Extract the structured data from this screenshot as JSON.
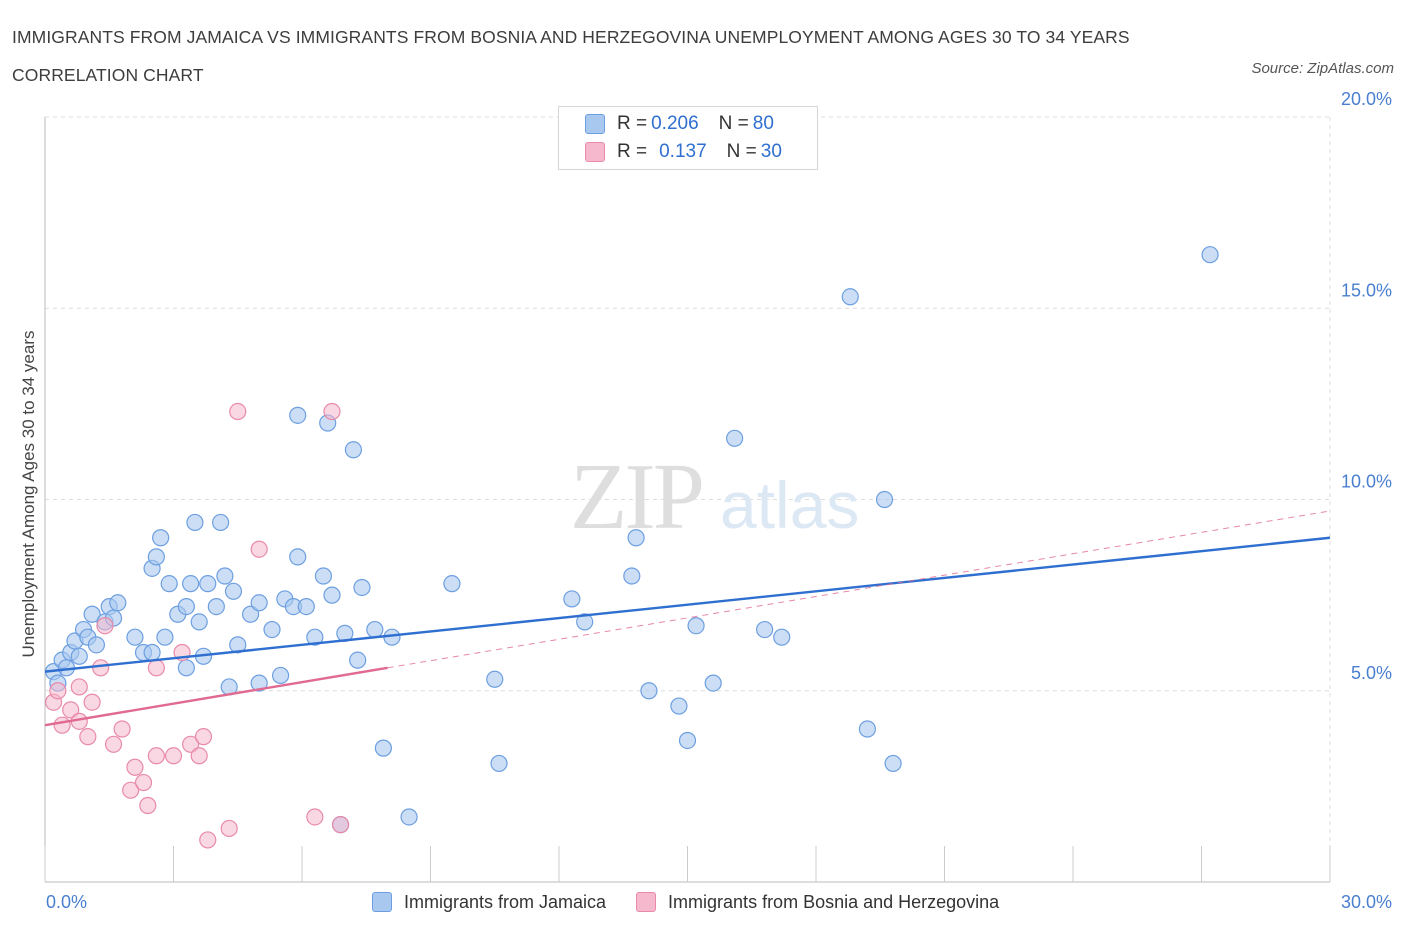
{
  "header": {
    "title": "IMMIGRANTS FROM JAMAICA VS IMMIGRANTS FROM BOSNIA AND HERZEGOVINA UNEMPLOYMENT AMONG AGES 30 TO 34 YEARS CORRELATION CHART",
    "source": "Source: ZipAtlas.com"
  },
  "watermark": {
    "zip": "ZIP",
    "atlas": "atlas"
  },
  "legend": {
    "series1": {
      "r_label": "R = ",
      "r_value": "0.206",
      "n_label": "N = ",
      "n_value": "80"
    },
    "series2": {
      "r_label": "R = ",
      "r_value": "0.137",
      "n_label": "N = ",
      "n_value": "30"
    }
  },
  "colors": {
    "jamaica_fill": "#a8c8f0",
    "jamaica_stroke": "#6d9fe0",
    "jamaica_line": "#2f6fd0",
    "bosnia_fill": "#f5b8cc",
    "bosnia_stroke": "#e88aa8",
    "bosnia_line": "#e06a92",
    "grid": "#dcdcdc",
    "axis_text": "#4a7fd0"
  },
  "chart_data": {
    "type": "scatter",
    "title": "IMMIGRANTS FROM JAMAICA VS IMMIGRANTS FROM BOSNIA AND HERZEGOVINA UNEMPLOYMENT AMONG AGES 30 TO 34 YEARS CORRELATION CHART",
    "xlabel": "",
    "ylabel": "Unemployment Among Ages 30 to 34 years",
    "xlim": [
      0,
      30
    ],
    "ylim": [
      0,
      20
    ],
    "x_tick_labels": [
      "0.0%",
      "30.0%"
    ],
    "y_tick_values": [
      5,
      10,
      15,
      20
    ],
    "y_tick_labels": [
      "5.0%",
      "10.0%",
      "15.0%",
      "20.0%"
    ],
    "grid": true,
    "legend_position": "top-center",
    "series": [
      {
        "name": "Immigrants from Jamaica",
        "r": 0.206,
        "n": 80,
        "trend": {
          "x": [
            0,
            30
          ],
          "y": [
            5.5,
            9.0
          ]
        },
        "points": [
          [
            0.2,
            5.5
          ],
          [
            0.3,
            5.2
          ],
          [
            0.4,
            5.8
          ],
          [
            0.5,
            5.6
          ],
          [
            0.6,
            6.0
          ],
          [
            0.7,
            6.3
          ],
          [
            0.8,
            5.9
          ],
          [
            0.9,
            6.6
          ],
          [
            1.0,
            6.4
          ],
          [
            1.1,
            7.0
          ],
          [
            1.2,
            6.2
          ],
          [
            1.4,
            6.8
          ],
          [
            1.5,
            7.2
          ],
          [
            1.6,
            6.9
          ],
          [
            1.7,
            7.3
          ],
          [
            2.1,
            6.4
          ],
          [
            2.3,
            6.0
          ],
          [
            2.5,
            8.2
          ],
          [
            2.6,
            8.5
          ],
          [
            2.7,
            9.0
          ],
          [
            2.9,
            7.8
          ],
          [
            3.1,
            7.0
          ],
          [
            3.3,
            7.2
          ],
          [
            3.4,
            7.8
          ],
          [
            3.6,
            6.8
          ],
          [
            3.8,
            7.8
          ],
          [
            4.0,
            7.2
          ],
          [
            4.2,
            8.0
          ],
          [
            4.4,
            7.6
          ],
          [
            4.5,
            6.2
          ],
          [
            4.8,
            7.0
          ],
          [
            5.0,
            7.3
          ],
          [
            5.3,
            6.6
          ],
          [
            5.6,
            7.4
          ],
          [
            5.8,
            7.2
          ],
          [
            5.9,
            8.5
          ],
          [
            6.1,
            7.2
          ],
          [
            6.3,
            6.4
          ],
          [
            6.5,
            8.0
          ],
          [
            6.7,
            7.5
          ],
          [
            7.0,
            6.5
          ],
          [
            7.4,
            7.7
          ],
          [
            7.7,
            6.6
          ],
          [
            8.1,
            6.4
          ],
          [
            3.3,
            5.6
          ],
          [
            3.7,
            5.9
          ],
          [
            4.3,
            5.1
          ],
          [
            5.0,
            5.2
          ],
          [
            5.5,
            5.4
          ],
          [
            7.3,
            5.8
          ],
          [
            2.5,
            6.0
          ],
          [
            3.5,
            9.4
          ],
          [
            4.1,
            9.4
          ],
          [
            5.9,
            12.2
          ],
          [
            6.6,
            12.0
          ],
          [
            7.2,
            11.3
          ],
          [
            7.9,
            3.5
          ],
          [
            8.5,
            1.7
          ],
          [
            9.5,
            7.8
          ],
          [
            10.5,
            5.3
          ],
          [
            10.6,
            3.1
          ],
          [
            12.3,
            7.4
          ],
          [
            12.6,
            6.8
          ],
          [
            13.7,
            8.0
          ],
          [
            13.8,
            9.0
          ],
          [
            14.1,
            5.0
          ],
          [
            14.8,
            4.6
          ],
          [
            15.0,
            3.7
          ],
          [
            15.2,
            6.7
          ],
          [
            15.6,
            5.2
          ],
          [
            16.1,
            11.6
          ],
          [
            16.8,
            6.6
          ],
          [
            17.2,
            6.4
          ],
          [
            18.8,
            15.3
          ],
          [
            19.2,
            4.0
          ],
          [
            19.6,
            10.0
          ],
          [
            19.8,
            3.1
          ],
          [
            27.2,
            16.4
          ],
          [
            2.8,
            6.4
          ],
          [
            6.9,
            1.5
          ]
        ]
      },
      {
        "name": "Immigrants from Bosnia and Herzegovina",
        "r": 0.137,
        "n": 30,
        "trend": {
          "x": [
            0,
            8
          ],
          "y": [
            4.1,
            5.6
          ]
        },
        "trend_extended": {
          "x": [
            8,
            30
          ],
          "y": [
            5.6,
            9.7
          ]
        },
        "points": [
          [
            0.2,
            4.7
          ],
          [
            0.3,
            5.0
          ],
          [
            0.4,
            4.1
          ],
          [
            0.6,
            4.5
          ],
          [
            0.8,
            4.2
          ],
          [
            0.8,
            5.1
          ],
          [
            1.0,
            3.8
          ],
          [
            1.1,
            4.7
          ],
          [
            1.3,
            5.6
          ],
          [
            1.4,
            6.7
          ],
          [
            1.6,
            3.6
          ],
          [
            1.8,
            4.0
          ],
          [
            2.0,
            2.4
          ],
          [
            2.1,
            3.0
          ],
          [
            2.3,
            2.6
          ],
          [
            2.4,
            2.0
          ],
          [
            2.6,
            3.3
          ],
          [
            3.0,
            3.3
          ],
          [
            3.2,
            6.0
          ],
          [
            3.4,
            3.6
          ],
          [
            3.6,
            3.3
          ],
          [
            3.7,
            3.8
          ],
          [
            3.8,
            1.1
          ],
          [
            4.3,
            1.4
          ],
          [
            4.5,
            12.3
          ],
          [
            5.0,
            8.7
          ],
          [
            6.3,
            1.7
          ],
          [
            6.7,
            12.3
          ],
          [
            6.9,
            1.5
          ],
          [
            2.6,
            5.6
          ]
        ]
      }
    ]
  },
  "bottom_legend": {
    "items": [
      {
        "label": "Immigrants from Jamaica"
      },
      {
        "label": "Immigrants from Bosnia and Herzegovina"
      }
    ]
  }
}
